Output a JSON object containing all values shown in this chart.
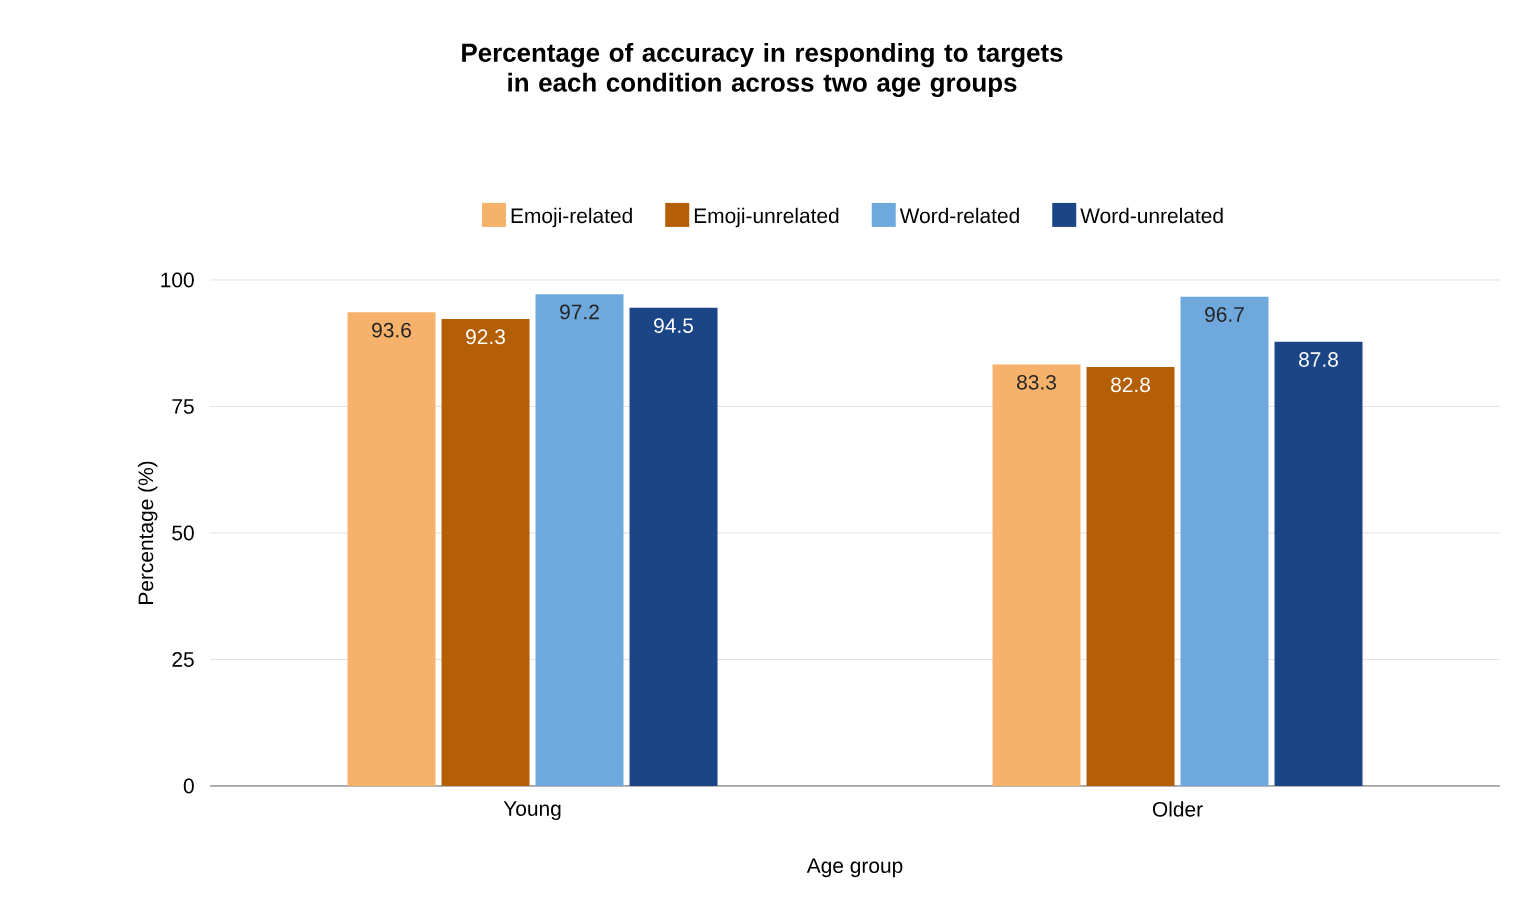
{
  "chart_data": {
    "type": "bar",
    "title": "Percentage of accuracy in responding to targets in each condition across two age groups",
    "xlabel": "Age group",
    "ylabel": "Percentage (%)",
    "categories": [
      "Young",
      "Older"
    ],
    "series": [
      {
        "name": "Emoji-related",
        "color": "#f6b26b",
        "values": [
          93.6,
          83.3
        ]
      },
      {
        "name": "Emoji-unrelated",
        "color": "#b45f06",
        "values": [
          92.3,
          82.8
        ]
      },
      {
        "name": "Word-related",
        "color": "#6fa8dc",
        "values": [
          97.2,
          96.7
        ]
      },
      {
        "name": "Word-unrelated",
        "color": "#1c4587",
        "values": [
          94.5,
          87.8
        ]
      }
    ],
    "ylim": [
      0,
      100
    ],
    "yticks": [
      0,
      25,
      50,
      75,
      100
    ],
    "grid": "y",
    "legend": "top",
    "data_labels": true
  }
}
